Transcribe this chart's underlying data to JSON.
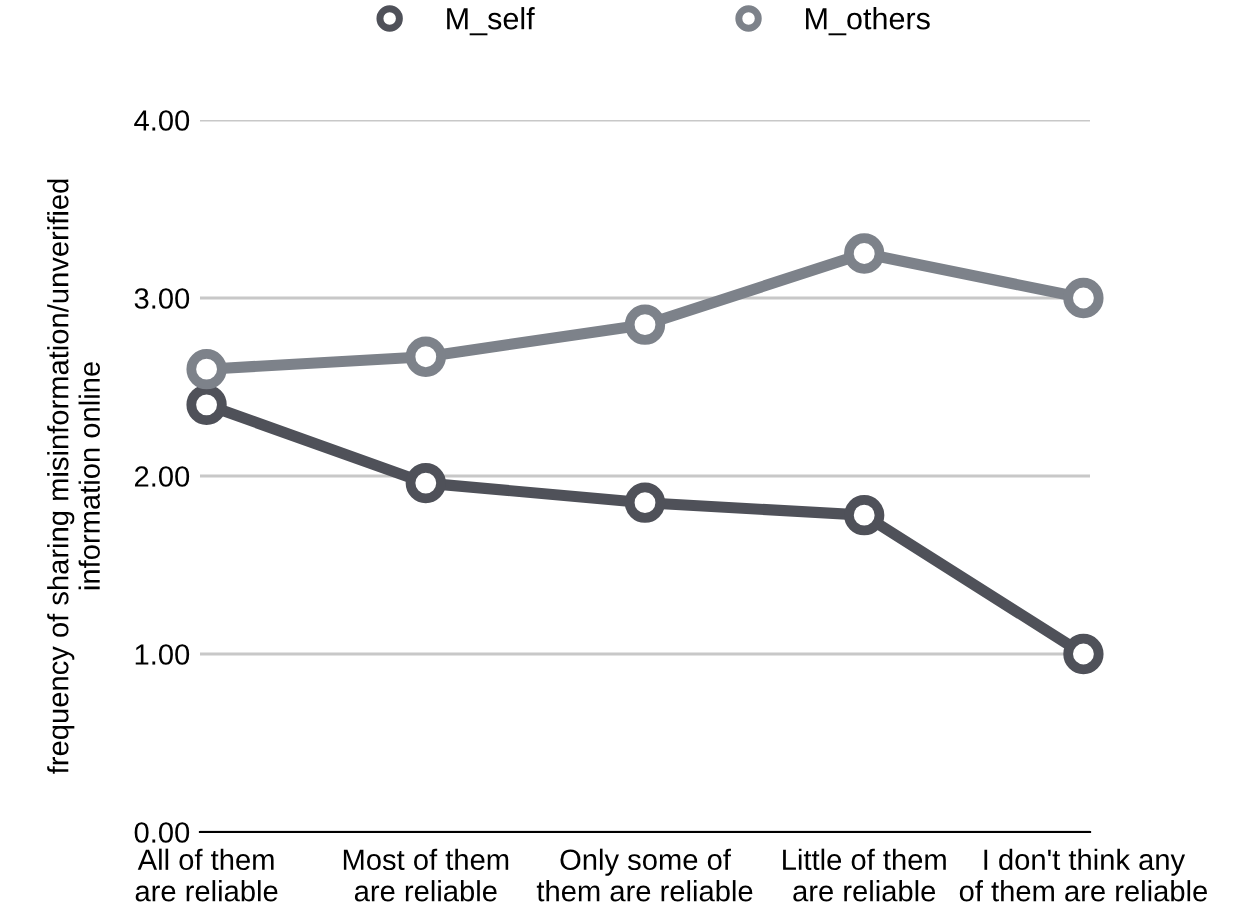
{
  "chart_data": {
    "type": "line",
    "ylabel": "frequency of sharing misinformation/unverified\ninformation online",
    "categories": [
      "All of them\nare reliable",
      "Most of them\nare reliable",
      "Only some of\nthem are reliable",
      "Little of them\nare reliable",
      "I don't think any\nof them are reliable"
    ],
    "series": [
      {
        "name": "M_self",
        "color": "#4f5159",
        "values": [
          2.4,
          1.96,
          1.85,
          1.78,
          1.0
        ]
      },
      {
        "name": "M_others",
        "color": "#7d828a",
        "values": [
          2.6,
          2.67,
          2.85,
          3.25,
          3.0
        ]
      }
    ],
    "ylim": [
      0,
      4
    ],
    "yticks": [
      {
        "value": 0,
        "label": "0.00"
      },
      {
        "value": 1,
        "label": "1.00"
      },
      {
        "value": 2,
        "label": "2.00"
      },
      {
        "value": 3,
        "label": "3.00"
      },
      {
        "value": 4,
        "label": "4.00"
      }
    ],
    "grid": "y",
    "legend": "top",
    "marker": "circle",
    "line_style": "solid"
  }
}
